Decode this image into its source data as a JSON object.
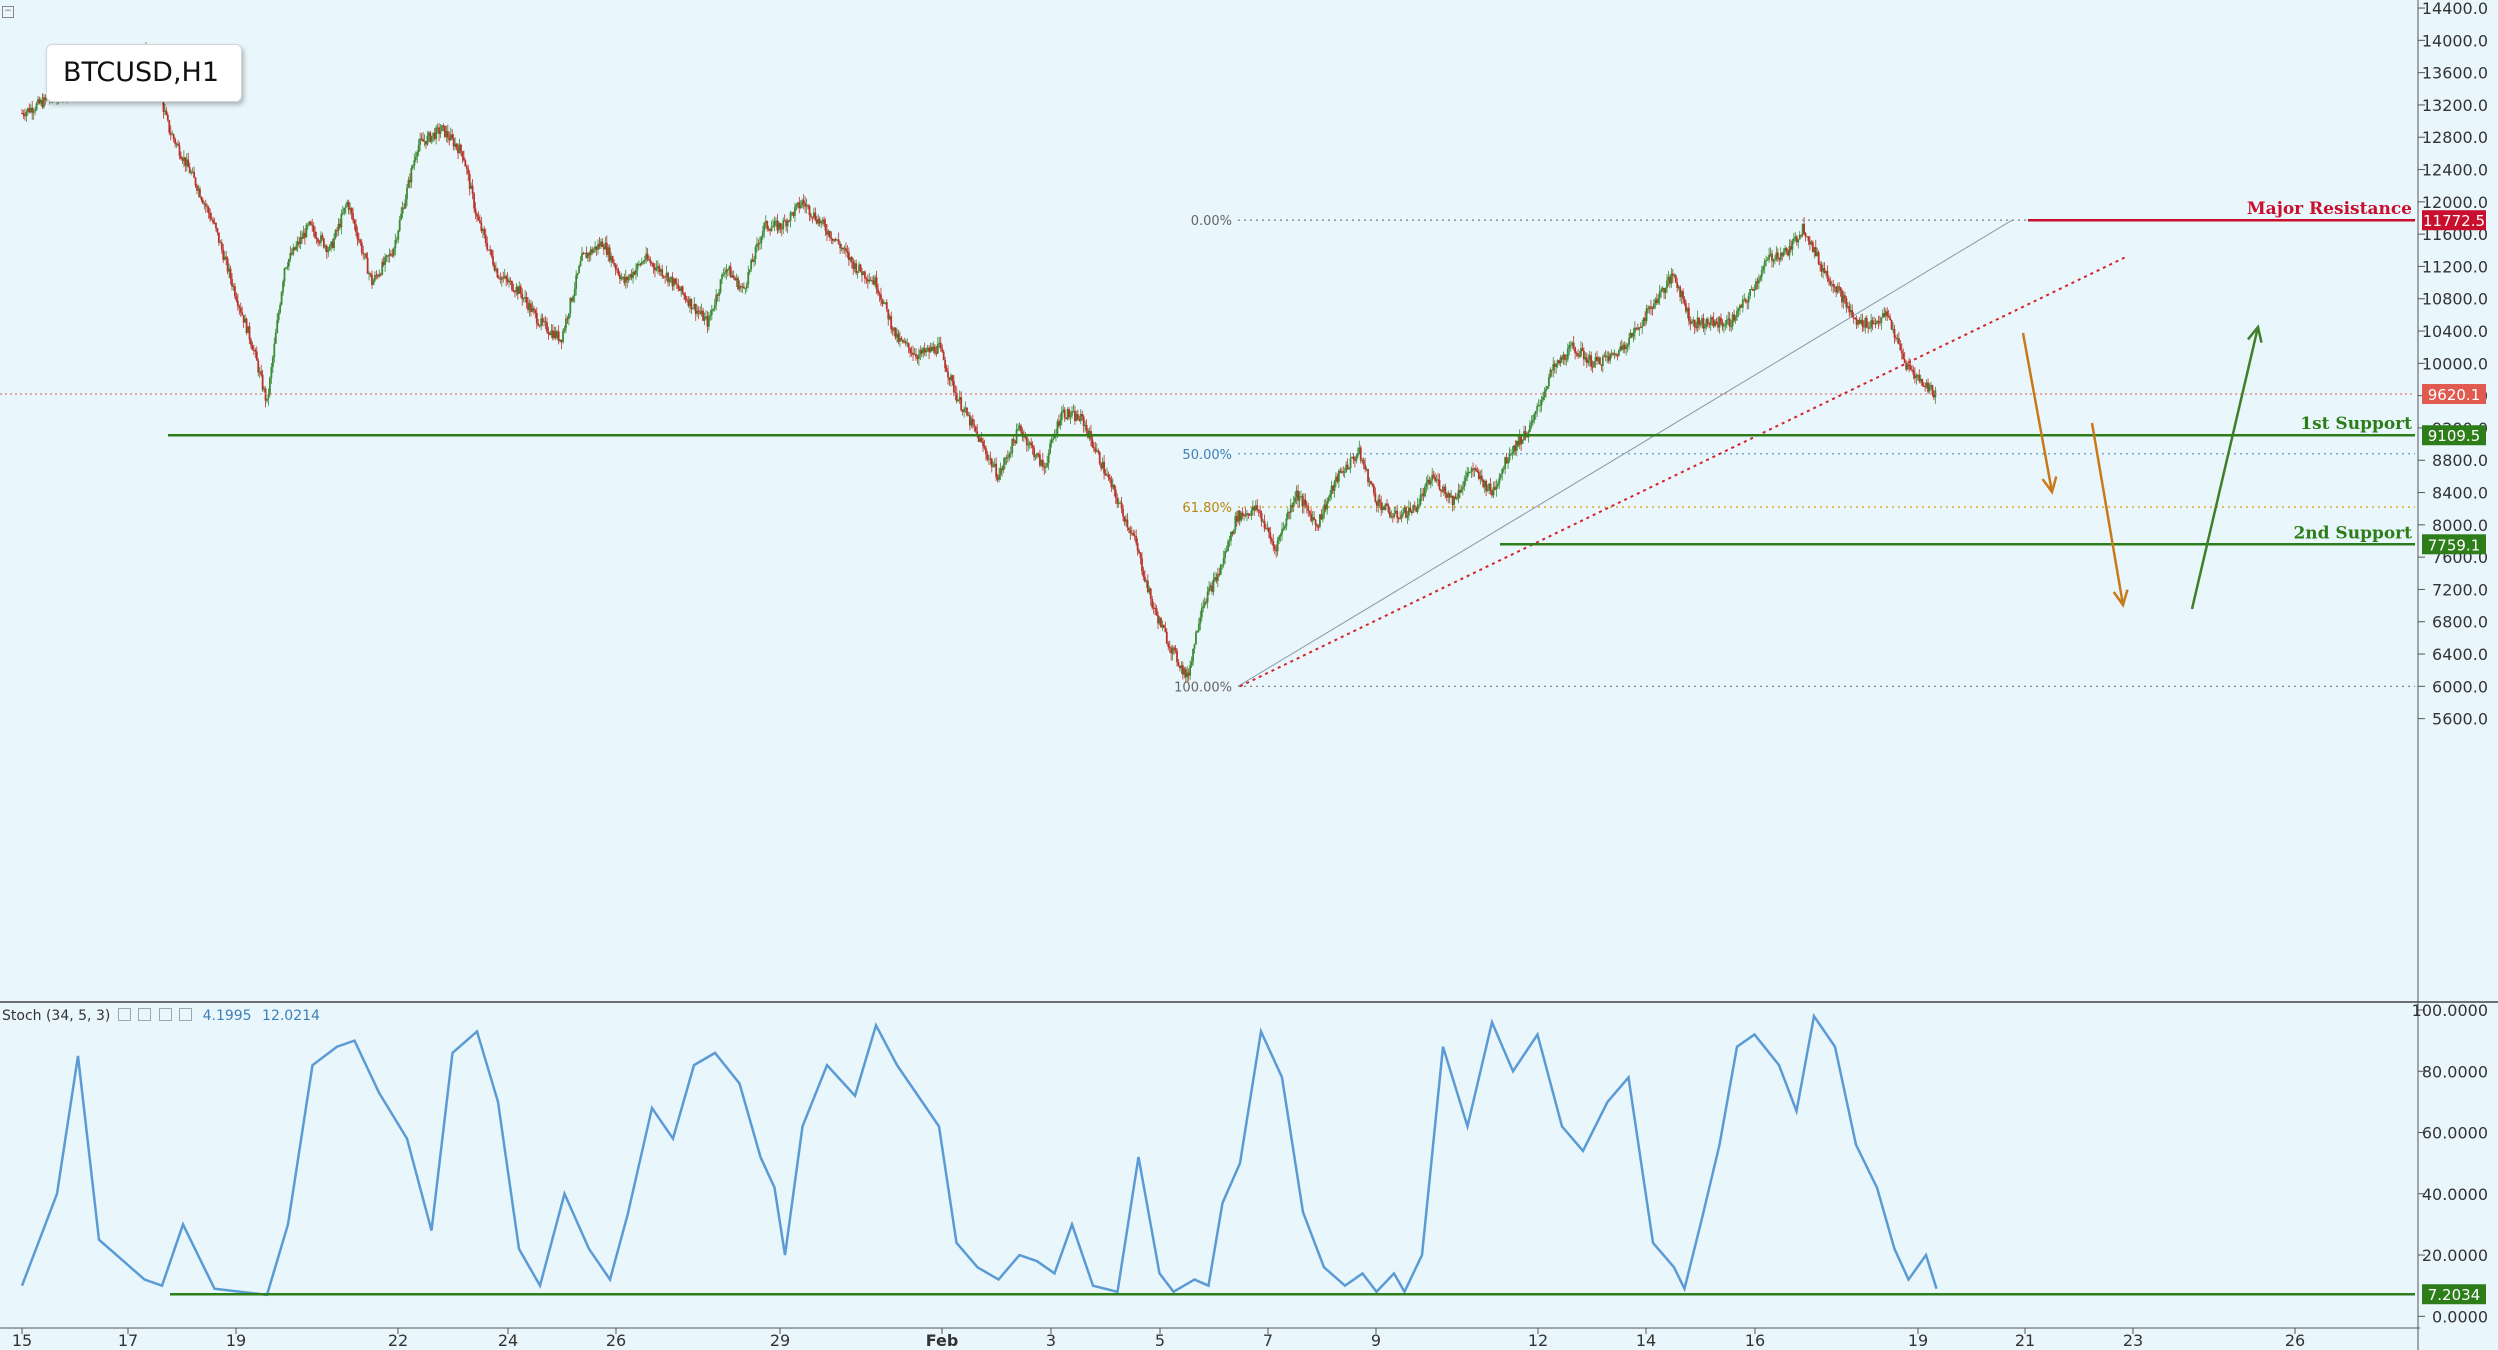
{
  "symbol_label": "BTCUSD,H1",
  "stoch_legend": {
    "name": "Stoch (34, 5, 3)",
    "k": "4.1995",
    "d": "12.0214"
  },
  "colors": {
    "background": "#e9f6fb",
    "bull": "#3d8a34",
    "bear": "#b8342a",
    "resistance": "#c8102e",
    "support": "#2e7d1b",
    "stoch": "#5b9bd5",
    "fib": "#909090"
  },
  "chart_data": [
    {
      "type": "candlestick",
      "title": "BTCUSD,H1",
      "y_ticks": [
        "5600.0",
        "6000.0",
        "6400.0",
        "6800.0",
        "7200.0",
        "7600.0",
        "8000.0",
        "8400.0",
        "8800.0",
        "9200.0",
        "9600.0",
        "10000.0",
        "10400.0",
        "10800.0",
        "11200.0",
        "11600.0",
        "12000.0",
        "12400.0",
        "12800.0",
        "13200.0",
        "13600.0",
        "14000.0",
        "14400.0"
      ],
      "ylim": [
        5550,
        14600
      ],
      "x_ticks": [
        "15",
        "17",
        "19",
        "22",
        "24",
        "26",
        "29",
        "Feb",
        "3",
        "5",
        "7",
        "9",
        "12",
        "14",
        "16",
        "19",
        "21",
        "23",
        "26"
      ],
      "price_path": [
        [
          0,
          13100
        ],
        [
          2,
          13550
        ],
        [
          3,
          13300
        ],
        [
          3.6,
          13900
        ],
        [
          4.2,
          12900
        ],
        [
          5,
          12200
        ],
        [
          5.5,
          11700
        ],
        [
          6,
          11000
        ],
        [
          6.6,
          10200
        ],
        [
          7,
          9500
        ],
        [
          7.5,
          11200
        ],
        [
          8.2,
          11700
        ],
        [
          8.8,
          11400
        ],
        [
          9.3,
          12000
        ],
        [
          10,
          11000
        ],
        [
          10.6,
          11400
        ],
        [
          11.3,
          12700
        ],
        [
          12,
          12900
        ],
        [
          12.6,
          12600
        ],
        [
          13,
          11800
        ],
        [
          13.6,
          11100
        ],
        [
          14.2,
          10900
        ],
        [
          14.8,
          10500
        ],
        [
          15.4,
          10300
        ],
        [
          16,
          11300
        ],
        [
          16.6,
          11500
        ],
        [
          17.2,
          11000
        ],
        [
          17.8,
          11300
        ],
        [
          18.4,
          11100
        ],
        [
          19,
          10800
        ],
        [
          19.6,
          10500
        ],
        [
          20.1,
          11200
        ],
        [
          20.6,
          10900
        ],
        [
          21.2,
          11700
        ],
        [
          21.7,
          11700
        ],
        [
          22.3,
          12000
        ],
        [
          22.7,
          11800
        ],
        [
          23.3,
          11500
        ],
        [
          23.8,
          11200
        ],
        [
          24.4,
          11000
        ],
        [
          25,
          10300
        ],
        [
          25.6,
          10100
        ],
        [
          26.2,
          10200
        ],
        [
          26.7,
          9600
        ],
        [
          27.3,
          9100
        ],
        [
          27.9,
          8600
        ],
        [
          28.5,
          9200
        ],
        [
          29.2,
          8700
        ],
        [
          29.7,
          9400
        ],
        [
          30.3,
          9300
        ],
        [
          30.8,
          8800
        ],
        [
          31.3,
          8300
        ],
        [
          31.8,
          7800
        ],
        [
          32.3,
          7000
        ],
        [
          32.8,
          6500
        ],
        [
          33.3,
          6100
        ],
        [
          33.7,
          7000
        ],
        [
          34.2,
          7400
        ],
        [
          34.7,
          8100
        ],
        [
          35.3,
          8200
        ],
        [
          35.8,
          7700
        ],
        [
          36.4,
          8400
        ],
        [
          37,
          8000
        ],
        [
          37.6,
          8600
        ],
        [
          38.2,
          8900
        ],
        [
          38.7,
          8300
        ],
        [
          39.2,
          8100
        ],
        [
          39.8,
          8200
        ],
        [
          40.3,
          8600
        ],
        [
          40.9,
          8300
        ],
        [
          41.4,
          8700
        ],
        [
          42,
          8400
        ],
        [
          42.5,
          8900
        ],
        [
          43.1,
          9200
        ],
        [
          43.7,
          9900
        ],
        [
          44.3,
          10200
        ],
        [
          44.9,
          10000
        ],
        [
          45.5,
          10100
        ],
        [
          46.1,
          10400
        ],
        [
          46.7,
          10800
        ],
        [
          47.2,
          11100
        ],
        [
          47.7,
          10500
        ],
        [
          48.2,
          10500
        ],
        [
          48.8,
          10500
        ],
        [
          49.3,
          10800
        ],
        [
          49.9,
          11300
        ],
        [
          50.5,
          11400
        ],
        [
          50.9,
          11700
        ],
        [
          51.4,
          11200
        ],
        [
          51.9,
          10900
        ],
        [
          52.4,
          10500
        ],
        [
          52.9,
          10500
        ],
        [
          53.3,
          10600
        ],
        [
          53.8,
          10000
        ],
        [
          54.2,
          9800
        ],
        [
          54.7,
          9620
        ]
      ],
      "lines": [
        {
          "label": "Major Resistance",
          "price_label": "11772.5",
          "value": 11772.5
        },
        {
          "label": "1st Support",
          "price_label": "9109.5",
          "value": 9109.5
        },
        {
          "label": "2nd Support",
          "price_label": "7759.1",
          "value": 7759.1
        },
        {
          "label": "",
          "price_label": "9620.1",
          "value": 9620.1
        }
      ],
      "fibonacci": [
        {
          "label": "0.00%",
          "value": 11772.5
        },
        {
          "label": "50.00%",
          "value": 8880
        },
        {
          "label": "61.80%",
          "value": 8220
        },
        {
          "label": "100.00%",
          "value": 6000
        }
      ]
    },
    {
      "type": "line",
      "title": "Stoch (34, 5, 3)",
      "y_ticks": [
        "0.0000",
        "20.0000",
        "40.0000",
        "60.0000",
        "80.0000",
        "100.0000"
      ],
      "ylim": [
        -5,
        100
      ],
      "series": [
        {
          "values": [
            [
              0,
              10
            ],
            [
              1,
              40
            ],
            [
              1.6,
              85
            ],
            [
              2.2,
              25
            ],
            [
              3,
              17
            ],
            [
              3.5,
              12
            ],
            [
              4,
              10
            ],
            [
              4.6,
              30
            ],
            [
              5.5,
              9
            ],
            [
              7,
              7
            ],
            [
              7.6,
              30
            ],
            [
              8.3,
              82
            ],
            [
              9,
              88
            ],
            [
              9.5,
              90
            ],
            [
              10.2,
              73
            ],
            [
              11,
              58
            ],
            [
              11.7,
              28
            ],
            [
              12.3,
              86
            ],
            [
              13,
              93
            ],
            [
              13.6,
              70
            ],
            [
              14.2,
              22
            ],
            [
              14.8,
              10
            ],
            [
              15.5,
              40
            ],
            [
              16.2,
              22
            ],
            [
              16.8,
              12
            ],
            [
              17.3,
              33
            ],
            [
              18,
              68
            ],
            [
              18.6,
              58
            ],
            [
              19.2,
              82
            ],
            [
              19.8,
              86
            ],
            [
              20.5,
              76
            ],
            [
              21.1,
              52
            ],
            [
              21.5,
              42
            ],
            [
              21.8,
              20
            ],
            [
              22.3,
              62
            ],
            [
              23,
              82
            ],
            [
              23.8,
              72
            ],
            [
              24.4,
              95
            ],
            [
              25,
              82
            ],
            [
              25.6,
              72
            ],
            [
              26.2,
              62
            ],
            [
              26.7,
              24
            ],
            [
              27.3,
              16
            ],
            [
              27.9,
              12
            ],
            [
              28.5,
              20
            ],
            [
              29,
              18
            ],
            [
              29.5,
              14
            ],
            [
              30,
              30
            ],
            [
              30.6,
              10
            ],
            [
              31.3,
              8
            ],
            [
              31.9,
              52
            ],
            [
              32.5,
              14
            ],
            [
              32.9,
              8
            ],
            [
              33.5,
              12
            ],
            [
              33.9,
              10
            ],
            [
              34.3,
              37
            ],
            [
              34.8,
              50
            ],
            [
              35.4,
              93
            ],
            [
              36,
              78
            ],
            [
              36.6,
              34
            ],
            [
              37.2,
              16
            ],
            [
              37.8,
              10
            ],
            [
              38.3,
              14
            ],
            [
              38.7,
              8
            ],
            [
              39.2,
              14
            ],
            [
              39.5,
              8
            ],
            [
              40,
              20
            ],
            [
              40.6,
              88
            ],
            [
              41.3,
              62
            ],
            [
              42,
              96
            ],
            [
              42.6,
              80
            ],
            [
              43.3,
              92
            ],
            [
              44,
              62
            ],
            [
              44.6,
              54
            ],
            [
              45.3,
              70
            ],
            [
              45.9,
              78
            ],
            [
              46.6,
              24
            ],
            [
              47.2,
              16
            ],
            [
              47.5,
              9
            ],
            [
              48,
              32
            ],
            [
              48.5,
              56
            ],
            [
              49,
              88
            ],
            [
              49.5,
              92
            ],
            [
              50.2,
              82
            ],
            [
              50.7,
              67
            ],
            [
              51.2,
              98
            ],
            [
              51.8,
              88
            ],
            [
              52.4,
              56
            ],
            [
              53,
              42
            ],
            [
              53.5,
              22
            ],
            [
              53.9,
              12
            ],
            [
              54.4,
              20
            ],
            [
              54.7,
              9
            ]
          ]
        },
        {
          "values": [
            [
              0,
              14
            ],
            [
              1,
              44
            ],
            [
              2,
              28
            ],
            [
              3,
              15
            ],
            [
              4,
              13
            ],
            [
              5,
              11
            ],
            [
              6,
              12
            ],
            [
              7,
              10
            ]
          ]
        }
      ],
      "lines": [
        {
          "label": "",
          "price_label": "7.2034",
          "value": 7.2034
        }
      ]
    }
  ]
}
